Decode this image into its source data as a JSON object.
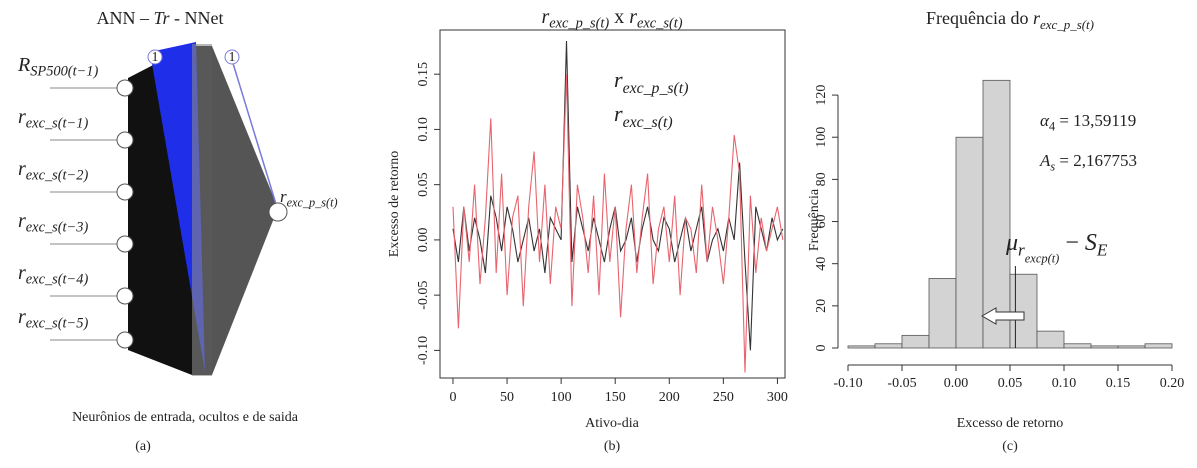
{
  "diagram": {
    "title": [
      {
        "text": "ANN – "
      },
      {
        "text": "Tr",
        "italic": true
      },
      {
        "text": " - NNet"
      }
    ],
    "bias_labels": [
      "1",
      "1"
    ],
    "inputs": [
      "RSP500(t−1)",
      "rexc_s(t−1)",
      "rexc_s(t−2)",
      "rexc_s(t−3)",
      "rexc_s(t−4)",
      "rexc_s(t−5)"
    ],
    "output": "rexc_p_s(t)",
    "caption": "Neurônios de entrada, ocultos e de saida",
    "panel_label": "(a)"
  },
  "chart_data": [
    {
      "type": "line",
      "title": [
        {
          "text": "r",
          "italic": true
        },
        {
          "text": "exc_p_s(t)",
          "sub": 1,
          "italic": true
        },
        {
          "text": " x "
        },
        {
          "text": "r",
          "italic": true
        },
        {
          "text": "exc_s(t)",
          "sub": 1,
          "italic": true
        }
      ],
      "xlabel": "Ativo-dia",
      "ylabel": "Excesso de retorno",
      "panel_label": "(b)",
      "x": [
        0,
        5,
        10,
        15,
        20,
        25,
        30,
        35,
        40,
        45,
        50,
        55,
        60,
        65,
        70,
        75,
        80,
        85,
        90,
        95,
        100,
        105,
        110,
        115,
        120,
        125,
        130,
        135,
        140,
        145,
        150,
        155,
        160,
        165,
        170,
        175,
        180,
        185,
        190,
        195,
        200,
        205,
        210,
        215,
        220,
        225,
        230,
        235,
        240,
        245,
        250,
        255,
        260,
        265,
        270,
        275,
        280,
        285,
        290,
        295,
        300,
        305
      ],
      "series": [
        {
          "name": "rexc_p_s(t)",
          "color": "#333333",
          "values": [
            0.01,
            -0.02,
            0.03,
            -0.01,
            0.02,
            0.0,
            -0.03,
            0.04,
            0.02,
            -0.01,
            0.03,
            0.01,
            -0.02,
            0.0,
            0.02,
            -0.01,
            0.01,
            -0.03,
            0.02,
            0.01,
            0.0,
            0.18,
            -0.02,
            0.03,
            0.01,
            -0.01,
            0.02,
            0.0,
            -0.02,
            0.01,
            0.03,
            -0.01,
            0.0,
            0.02,
            -0.02,
            0.01,
            0.03,
            0.0,
            -0.01,
            0.02,
            0.01,
            -0.02,
            0.0,
            0.02,
            -0.01,
            0.01,
            0.03,
            -0.02,
            0.0,
            0.01,
            -0.01,
            0.02,
            0.0,
            0.07,
            -0.02,
            -0.1,
            0.03,
            0.01,
            -0.01,
            0.02,
            0.0,
            0.01
          ]
        },
        {
          "name": "rexc_s(t)",
          "color": "#e8646e",
          "values": [
            0.03,
            -0.08,
            0.03,
            -0.02,
            0.05,
            -0.04,
            0.02,
            0.11,
            -0.03,
            0.06,
            -0.05,
            0.02,
            0.04,
            -0.06,
            0.03,
            0.08,
            -0.02,
            0.05,
            -0.04,
            0.03,
            0.01,
            0.15,
            -0.06,
            0.05,
            0.02,
            -0.03,
            0.04,
            -0.05,
            0.06,
            -0.02,
            0.03,
            -0.07,
            0.01,
            0.05,
            -0.03,
            0.02,
            0.06,
            -0.04,
            0.01,
            0.03,
            -0.02,
            0.04,
            -0.05,
            0.02,
            0.01,
            -0.03,
            0.05,
            -0.02,
            0.03,
            0.0,
            -0.04,
            0.02,
            0.095,
            0.06,
            -0.12,
            0.04,
            -0.03,
            0.02,
            -0.01,
            0.01,
            0.03,
            0.0
          ]
        }
      ],
      "xlim": [
        -12,
        307
      ],
      "xticks": [
        0,
        50,
        100,
        150,
        200,
        250,
        300
      ],
      "ylim": [
        -0.125,
        0.19
      ],
      "yticks": [
        {
          "value": -0.1,
          "label": "-0.10"
        },
        -0.05,
        {
          "value": 0,
          "label": "0.00"
        },
        0.05,
        {
          "value": 0.1,
          "label": "0.10"
        },
        0.15
      ]
    },
    {
      "type": "histogram",
      "title": [
        {
          "text": "Frequência do "
        },
        {
          "text": "r",
          "italic": true
        },
        {
          "text": "exc_p_s(t)",
          "sub": 1,
          "italic": true
        }
      ],
      "xlabel": "Excesso de retorno",
      "ylabel": "Frequência",
      "panel_label": "(c)",
      "bins": [
        -0.1,
        -0.075,
        -0.05,
        -0.025,
        0,
        0.025,
        0.05,
        0.075,
        0.1,
        0.125,
        0.15,
        0.175,
        0.2
      ],
      "counts": [
        1,
        2,
        6,
        33,
        100,
        127,
        35,
        8,
        2,
        1,
        1,
        2
      ],
      "color": "#d3d3d3",
      "marker_x": 0.055,
      "annotations": [
        [
          {
            "text": "α",
            "italic": true
          },
          {
            "text": "4",
            "sub": 1
          },
          {
            "text": " = 13,59119"
          }
        ],
        [
          {
            "text": "A",
            "italic": true
          },
          {
            "text": "s",
            "sub": 1,
            "italic": true
          },
          {
            "text": " = 2,167753"
          }
        ],
        [
          {
            "text": "μ",
            "italic": true
          },
          {
            "text": "r",
            "sub": 1,
            "italic": true
          },
          {
            "text": "exc",
            "sub": 2,
            "italic": true
          },
          {
            "text": "p(t)",
            "sub": 2,
            "italic": true
          },
          {
            "text": " − "
          },
          {
            "text": "S",
            "italic": true
          },
          {
            "text": "E",
            "sub": 1,
            "italic": true
          }
        ]
      ],
      "xlim": [
        -0.1,
        0.2
      ],
      "xticks": [
        {
          "value": -0.1,
          "label": "-0.10"
        },
        -0.05,
        {
          "value": 0,
          "label": "0.00"
        },
        0.05,
        {
          "value": 0.1,
          "label": "0.10"
        },
        0.15,
        {
          "value": 0.2,
          "label": "0.20"
        }
      ],
      "ylim": [
        0,
        130
      ],
      "yticks": [
        0,
        20,
        40,
        60,
        80,
        100,
        120
      ]
    }
  ]
}
